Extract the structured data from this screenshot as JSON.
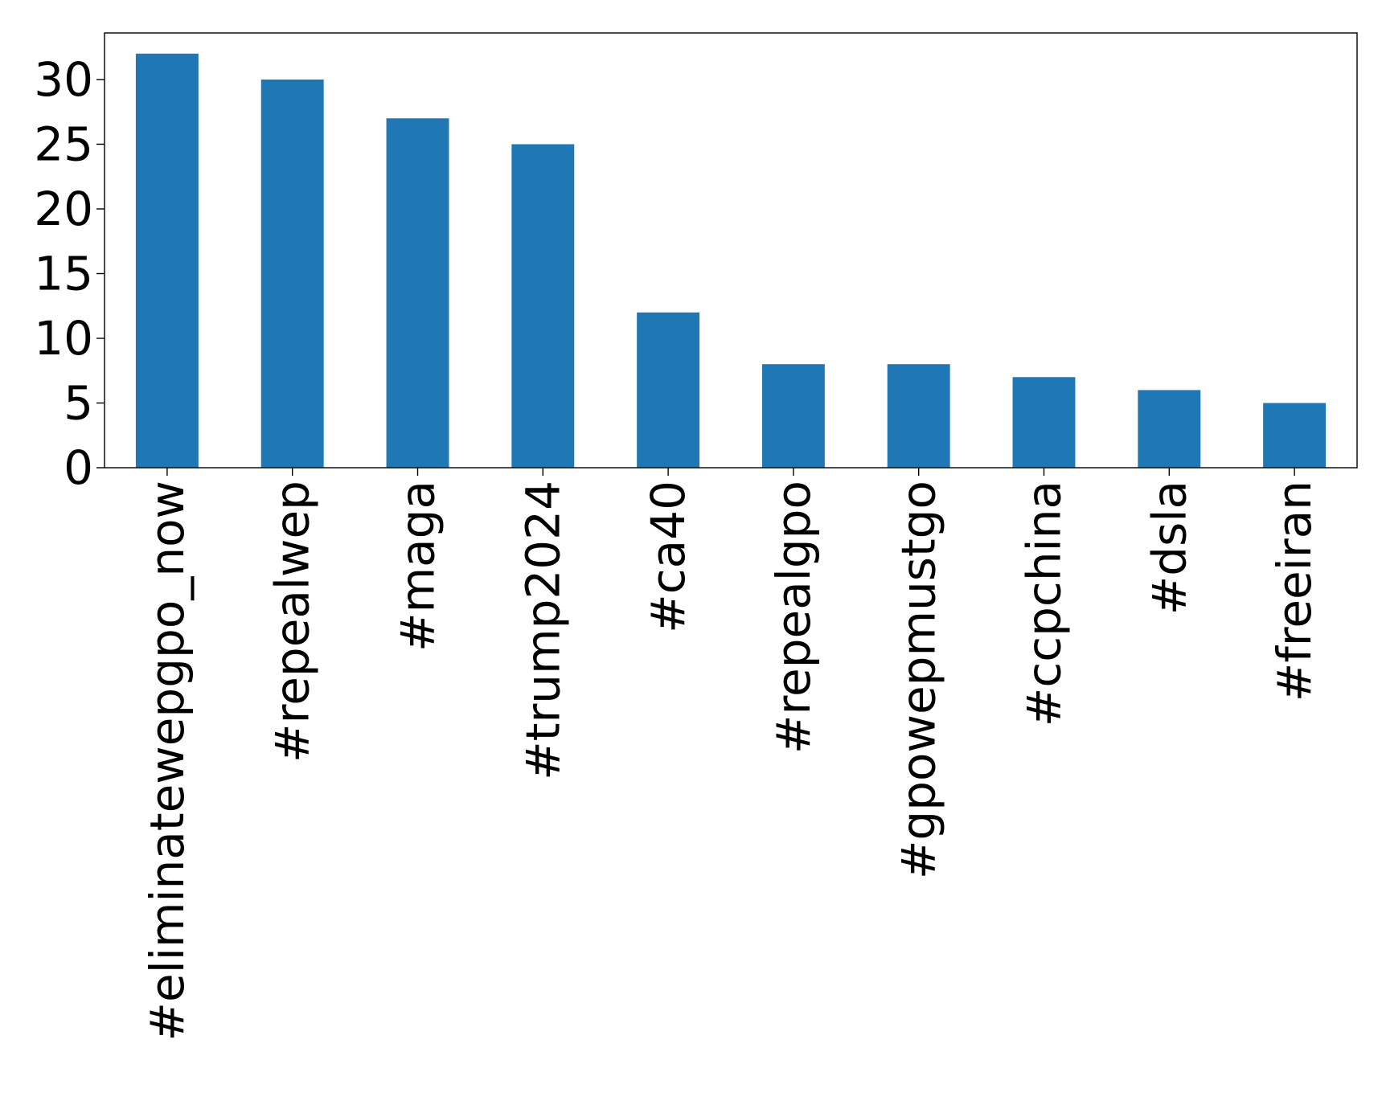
{
  "chart_data": {
    "type": "bar",
    "title": "",
    "xlabel": "",
    "ylabel": "",
    "categories": [
      "#eliminatewepgpo_now",
      "#repealwep",
      "#maga",
      "#trump2024",
      "#ca40",
      "#repealgpo",
      "#gpowepmustgo",
      "#ccpchina",
      "#dsla",
      "#freeiran"
    ],
    "values": [
      32,
      30,
      27,
      25,
      12,
      8,
      8,
      7,
      6,
      5
    ],
    "ylim": [
      0,
      33.6
    ],
    "yticks": [
      0,
      5,
      10,
      15,
      20,
      25,
      30
    ],
    "grid": false,
    "legend": "none",
    "colors": {
      "bar": "#1f77b4",
      "axis": "#000000",
      "background": "#ffffff"
    }
  }
}
